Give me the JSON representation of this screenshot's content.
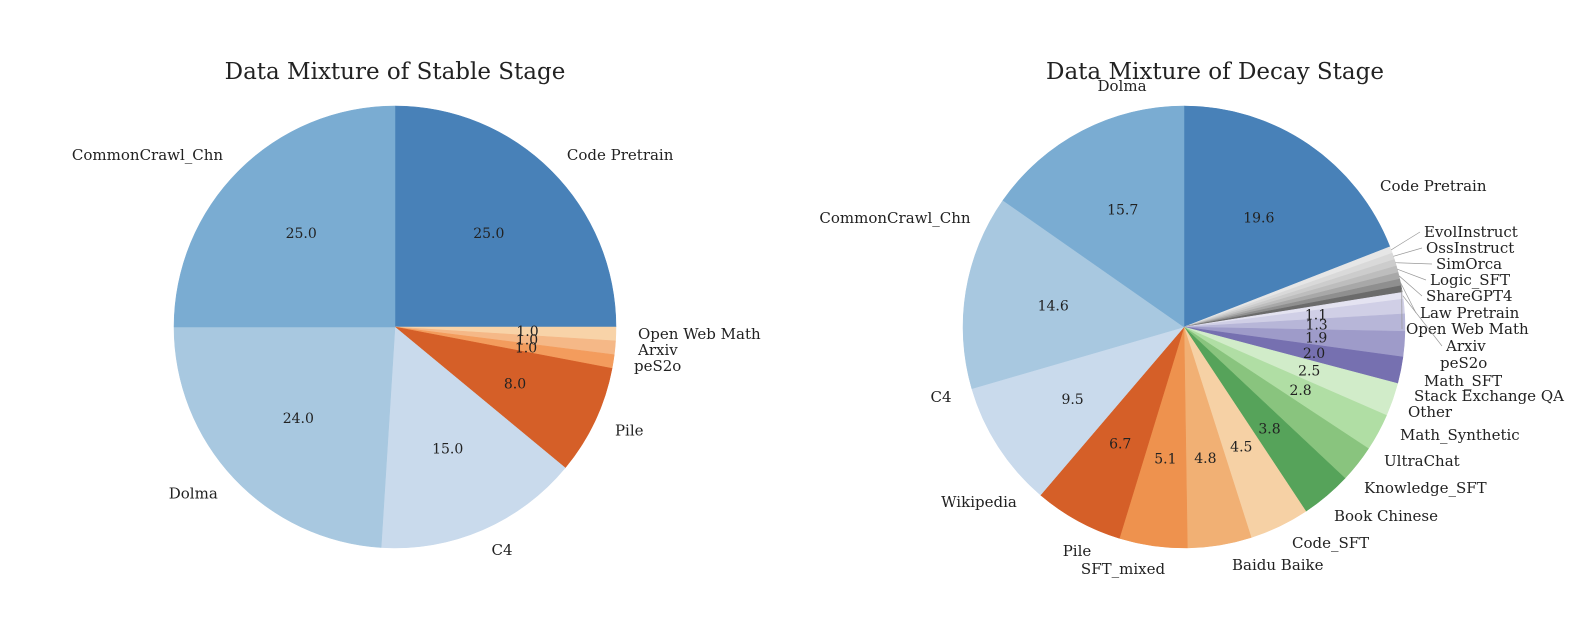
{
  "chart_data": [
    {
      "type": "pie",
      "title": "Data Mixture of Stable Stage",
      "start_angle_deg": 90,
      "direction": "clockwise",
      "slices": [
        {
          "label": "Code Pretrain",
          "value": 25.0,
          "pct": "25.0",
          "color": "#4881b8"
        },
        {
          "label": "Open Web Math",
          "value": 1.0,
          "pct": "1.0",
          "color": "#f8d3a8"
        },
        {
          "label": "Arxiv",
          "value": 1.0,
          "pct": "1.0",
          "color": "#f5b887"
        },
        {
          "label": "peS2o",
          "value": 1.0,
          "pct": "1.0",
          "color": "#f39c5d"
        },
        {
          "label": "Pile",
          "value": 8.0,
          "pct": "8.0",
          "color": "#d55f28"
        },
        {
          "label": "C4",
          "value": 15.0,
          "pct": "15.0",
          "color": "#c9daec"
        },
        {
          "label": "Dolma",
          "value": 24.0,
          "pct": "24.0",
          "color": "#a8c8e0"
        },
        {
          "label": "CommonCrawl_Chn",
          "value": 25.0,
          "pct": "25.0",
          "color": "#7aacd2"
        }
      ]
    },
    {
      "type": "pie",
      "title": "Data Mixture of Decay Stage",
      "start_angle_deg": 90,
      "direction": "clockwise",
      "slices": [
        {
          "label": "Code Pretrain",
          "value": 19.6,
          "pct": "19.6",
          "color": "#4881b8"
        },
        {
          "label": "EvolInstruct",
          "value": 0.5,
          "pct": "",
          "color": "#e6e6e6"
        },
        {
          "label": "OssInstruct",
          "value": 0.5,
          "pct": "",
          "color": "#d9d9d9"
        },
        {
          "label": "SimOrca",
          "value": 0.5,
          "pct": "",
          "color": "#cccccc"
        },
        {
          "label": "Logic_SFT",
          "value": 0.5,
          "pct": "",
          "color": "#bdbdbd"
        },
        {
          "label": "ShareGPT4",
          "value": 0.5,
          "pct": "",
          "color": "#a8a8a8"
        },
        {
          "label": "Law Pretrain",
          "value": 0.5,
          "pct": "",
          "color": "#8f8f8f"
        },
        {
          "label": "Open Web Math",
          "value": 0.5,
          "pct": "",
          "color": "#6b6b6b"
        },
        {
          "label": "Arxiv",
          "value": 0.5,
          "pct": "",
          "color": "#e4e3f1"
        },
        {
          "label": "peS2o",
          "value": 1.1,
          "pct": "1.1",
          "color": "#d0cfe6"
        },
        {
          "label": "Math_SFT",
          "value": 1.3,
          "pct": "1.3",
          "color": "#b7b6d8"
        },
        {
          "label": "Stack Exchange QA",
          "value": 1.9,
          "pct": "1.9",
          "color": "#9e9bc9"
        },
        {
          "label": "Other",
          "value": 2.0,
          "pct": "2.0",
          "color": "#7670b0"
        },
        {
          "label": "Math_Synthetic",
          "value": 2.5,
          "pct": "2.5",
          "color": "#d1ecc9"
        },
        {
          "label": "UltraChat",
          "value": 2.8,
          "pct": "2.8",
          "color": "#b0dea4"
        },
        {
          "label": "Knowledge_SFT",
          "value": 2.8,
          "pct": "",
          "color": "#89c47e"
        },
        {
          "label": "Book Chinese",
          "value": 3.8,
          "pct": "3.8",
          "color": "#56a35a"
        },
        {
          "label": "Code_SFT",
          "value": 4.5,
          "pct": "4.5",
          "color": "#f6d1a5"
        },
        {
          "label": "Baidu Baike",
          "value": 4.8,
          "pct": "4.8",
          "color": "#f1b074"
        },
        {
          "label": "SFT_mixed",
          "value": 5.1,
          "pct": "5.1",
          "color": "#ee924e"
        },
        {
          "label": "Pile",
          "value": 6.7,
          "pct": "6.7",
          "color": "#d55f28"
        },
        {
          "label": "Wikipedia",
          "value": 9.5,
          "pct": "9.5",
          "color": "#c9daec"
        },
        {
          "label": "C4",
          "value": 14.6,
          "pct": "14.6",
          "color": "#a8c8e0"
        },
        {
          "label": "CommonCrawl_Chn",
          "value": 15.7,
          "pct": "15.7",
          "color": "#7aacd2"
        },
        {
          "label": "Dolma",
          "value": 0,
          "pct": "",
          "color": "#7aacd2"
        }
      ]
    }
  ]
}
